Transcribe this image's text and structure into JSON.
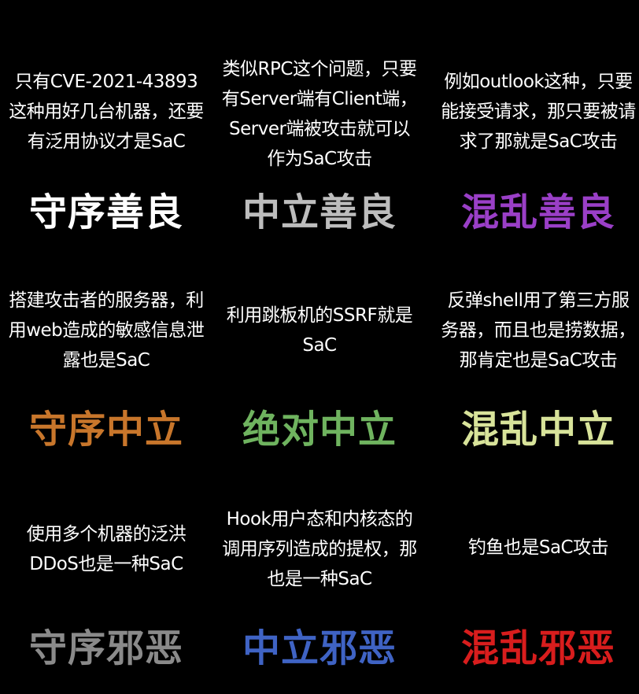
{
  "cells": [
    {
      "desc": "只有CVE-2021-43893这种用好几台机器，还要有泛用协议才是SaC",
      "label": "守序善良",
      "label_color": "#ffffff"
    },
    {
      "desc": "类似RPC这个问题，只要有Server端有Client端，Server端被攻击就可以作为SaC攻击",
      "label": "中立善良",
      "label_color": "#bdbdbd"
    },
    {
      "desc": "例如outlook这种，只要能接受请求，那只要被请求了那就是SaC攻击",
      "label": "混乱善良",
      "label_color": "#9a3fc7"
    },
    {
      "desc": "搭建攻击者的服务器，利用web造成的敏感信息泄露也是SaC",
      "label": "守序中立",
      "label_color": "#c8762b"
    },
    {
      "desc": "利用跳板机的SSRF就是SaC",
      "label": "绝对中立",
      "label_color": "#6fb35f"
    },
    {
      "desc": "反弹shell用了第三方服务器，而且也是捞数据，那肯定也是SaC攻击",
      "label": "混乱中立",
      "label_color": "#d8e39a"
    },
    {
      "desc": "使用多个机器的泛洪DDoS也是一种SaC",
      "label": "守序邪恶",
      "label_color": "#8a8a8a"
    },
    {
      "desc": "Hook用户态和内核态的调用序列造成的提权，那也是一种SaC",
      "label": "中立邪恶",
      "label_color": "#3f63c4"
    },
    {
      "desc": "钓鱼也是SaC攻击",
      "label": "混乱邪恶",
      "label_color": "#d81d1d"
    }
  ]
}
